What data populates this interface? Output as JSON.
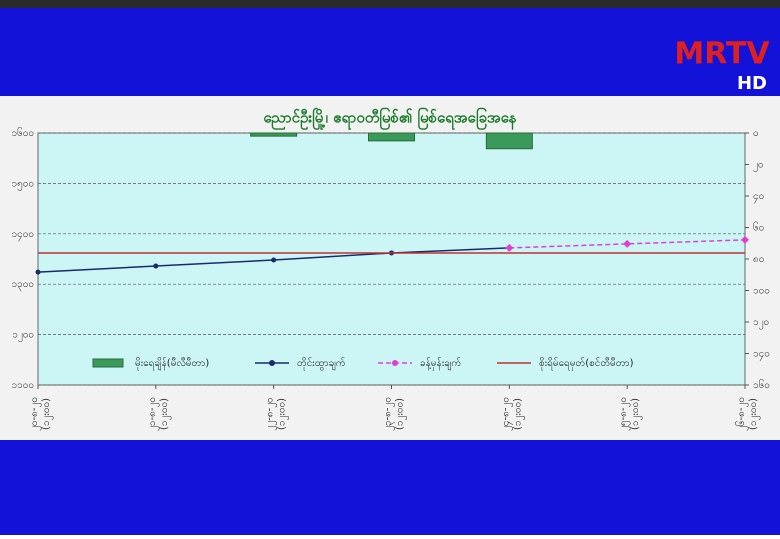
{
  "logo": {
    "main": "MRTV",
    "sub": "HD"
  },
  "chart_data": {
    "type": "line",
    "title": "ညောင်ဦးမြို့၊ ဧရာဝတီမြစ်၏ မြစ်ရေအခြေအနေ",
    "categories": [
      "၂၀-၈-၂၀",
      "၂၁-၈-၂၀",
      "၂၂-၈-၂၀",
      "၂၃-၈-၂၀",
      "၂၄-၈-၂၀",
      "၂၅-၈-၂၀",
      "၂၆-၈-၂၀"
    ],
    "times": [
      "(၁၂း၀၀)",
      "(၁၂း၀၀)",
      "(၁၂း၀၀)",
      "(၁၂း၀၀)",
      "(၁၂း၀၀)",
      "(၁၂း၀၀)",
      "(၁၂း၀၀)"
    ],
    "series": [
      {
        "name": "မိုးရေချိန်(မီလီမီတာ)",
        "type": "bar",
        "axis": "y2",
        "color": "#3a9a5a",
        "values": [
          null,
          null,
          2,
          5,
          10,
          null,
          null
        ]
      },
      {
        "name": "တိုင်းထွာချက်",
        "type": "line",
        "color": "#1a2a6a",
        "marker": "circle",
        "values": [
          1324,
          1336,
          1348,
          1362,
          1372,
          null,
          null
        ]
      },
      {
        "name": "ခန့်မှန်းချက်",
        "type": "line",
        "dashed": true,
        "color": "#e040d0",
        "marker": "diamond",
        "values": [
          null,
          null,
          null,
          null,
          1372,
          1380,
          1388
        ]
      },
      {
        "name": "စိုးရိမ်ရေမှတ်(စင်တီမီတာ)",
        "type": "hline",
        "color": "#c03030",
        "value": 1362
      }
    ],
    "ylim": [
      1100,
      1600
    ],
    "yticks": [
      {
        "value": 1100,
        "label": "၁၁၀၀"
      },
      {
        "value": 1200,
        "label": "၁၂၀၀"
      },
      {
        "value": 1300,
        "label": "၁၃၀၀"
      },
      {
        "value": 1400,
        "label": "၁၄၀၀"
      },
      {
        "value": 1500,
        "label": "၁၅၀၀"
      },
      {
        "value": 1600,
        "label": "၁၆၀၀"
      }
    ],
    "y2lim": [
      0,
      160
    ],
    "y2_inverted": true,
    "y2ticks": [
      {
        "value": 0,
        "label": "၀"
      },
      {
        "value": 20,
        "label": "၂၀"
      },
      {
        "value": 40,
        "label": "၄၀"
      },
      {
        "value": 60,
        "label": "၆၀"
      },
      {
        "value": 80,
        "label": "၈၀"
      },
      {
        "value": 100,
        "label": "၁၀၀"
      },
      {
        "value": 120,
        "label": "၁၂၀"
      },
      {
        "value": 140,
        "label": "၁၄၀"
      },
      {
        "value": 160,
        "label": "၁၆၀"
      }
    ],
    "grid": true
  }
}
